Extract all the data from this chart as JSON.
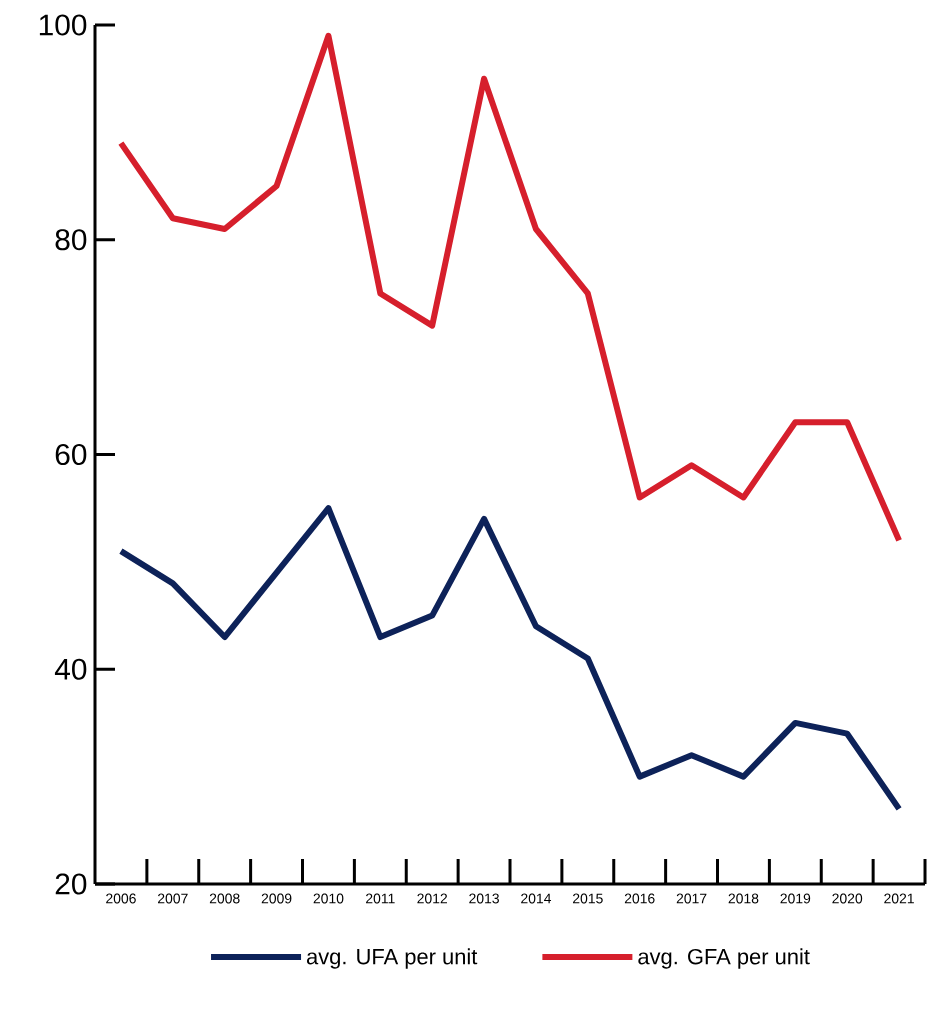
{
  "chart_data": {
    "type": "line",
    "categories": [
      "2006",
      "2007",
      "2008",
      "2009",
      "2010",
      "2011",
      "2012",
      "2013",
      "2014",
      "2015",
      "2016",
      "2017",
      "2018",
      "2019",
      "2020",
      "2021"
    ],
    "series": [
      {
        "name": "avg. UFA per unit",
        "color": "#0d2259",
        "values": [
          51,
          48,
          43,
          49,
          55,
          43,
          45,
          54,
          44,
          41,
          30,
          32,
          30,
          35,
          34,
          27
        ]
      },
      {
        "name": "avg. GFA per unit",
        "color": "#d61f2c",
        "values": [
          89,
          82,
          81,
          85,
          99,
          75,
          72,
          95,
          81,
          75,
          56,
          59,
          56,
          63,
          63,
          52
        ]
      }
    ],
    "ylim": [
      20,
      100
    ],
    "yticks": [
      20,
      40,
      60,
      80,
      100
    ],
    "legend": "bottom",
    "grid": false,
    "line_style": "solid"
  }
}
